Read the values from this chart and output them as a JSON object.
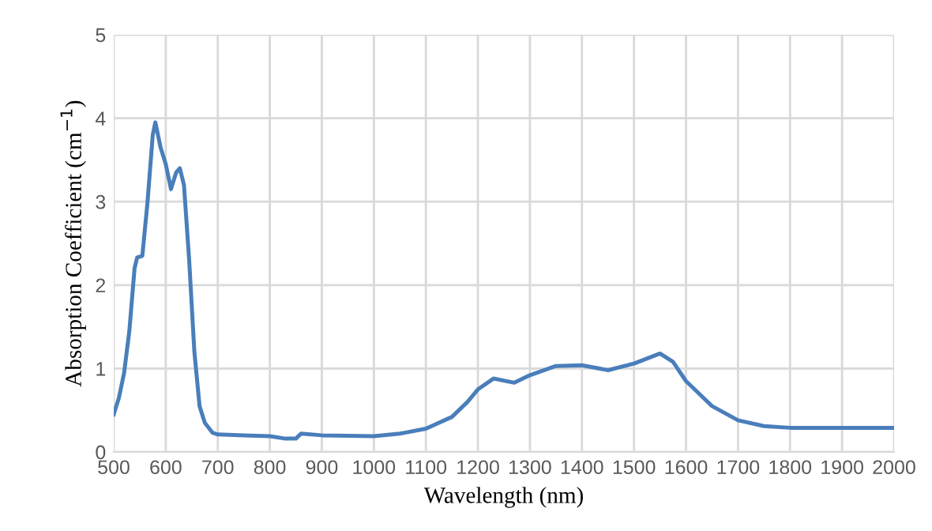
{
  "chart_data": {
    "type": "line",
    "xlabel": "Wavelength (nm)",
    "ylabel": "Absorption Coefficient (cm$^{−1}$)",
    "xlim": [
      500,
      2000
    ],
    "ylim": [
      0,
      5
    ],
    "xticks": [
      500,
      600,
      700,
      800,
      900,
      1000,
      1100,
      1200,
      1300,
      1400,
      1500,
      1600,
      1700,
      1800,
      1900,
      2000
    ],
    "yticks": [
      0,
      1,
      2,
      3,
      4,
      5
    ],
    "grid": true,
    "legend": false,
    "marker": "none",
    "line_style": "solid",
    "series": [
      {
        "color": "#4a7ebb",
        "x": [
          500,
          510,
          520,
          530,
          540,
          545,
          555,
          565,
          575,
          580,
          590,
          600,
          610,
          620,
          627,
          635,
          645,
          655,
          665,
          675,
          690,
          700,
          750,
          800,
          830,
          850,
          860,
          900,
          1000,
          1050,
          1100,
          1150,
          1180,
          1200,
          1230,
          1270,
          1300,
          1350,
          1400,
          1450,
          1500,
          1550,
          1575,
          1600,
          1650,
          1700,
          1750,
          1800,
          1900,
          2000
        ],
        "values": [
          0.45,
          0.65,
          0.95,
          1.45,
          2.2,
          2.33,
          2.35,
          3.0,
          3.8,
          3.95,
          3.65,
          3.45,
          3.15,
          3.35,
          3.4,
          3.2,
          2.3,
          1.2,
          0.55,
          0.35,
          0.23,
          0.21,
          0.2,
          0.19,
          0.16,
          0.16,
          0.22,
          0.2,
          0.19,
          0.22,
          0.28,
          0.42,
          0.6,
          0.75,
          0.88,
          0.83,
          0.92,
          1.03,
          1.04,
          0.98,
          1.06,
          1.18,
          1.08,
          0.85,
          0.55,
          0.38,
          0.31,
          0.29,
          0.29,
          0.29
        ]
      }
    ]
  }
}
